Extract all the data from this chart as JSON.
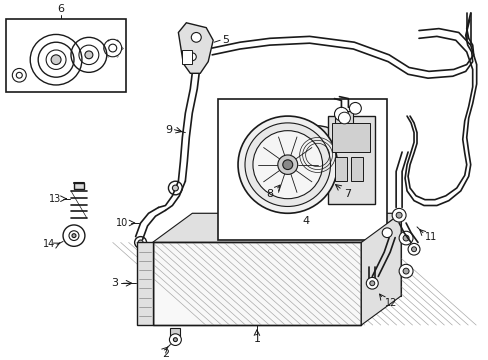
{
  "bg_color": "#ffffff",
  "line_color": "#1a1a1a",
  "fig_width": 4.89,
  "fig_height": 3.6,
  "dpi": 100,
  "gray_fill": "#e8e8e8",
  "light_fill": "#f5f5f5"
}
